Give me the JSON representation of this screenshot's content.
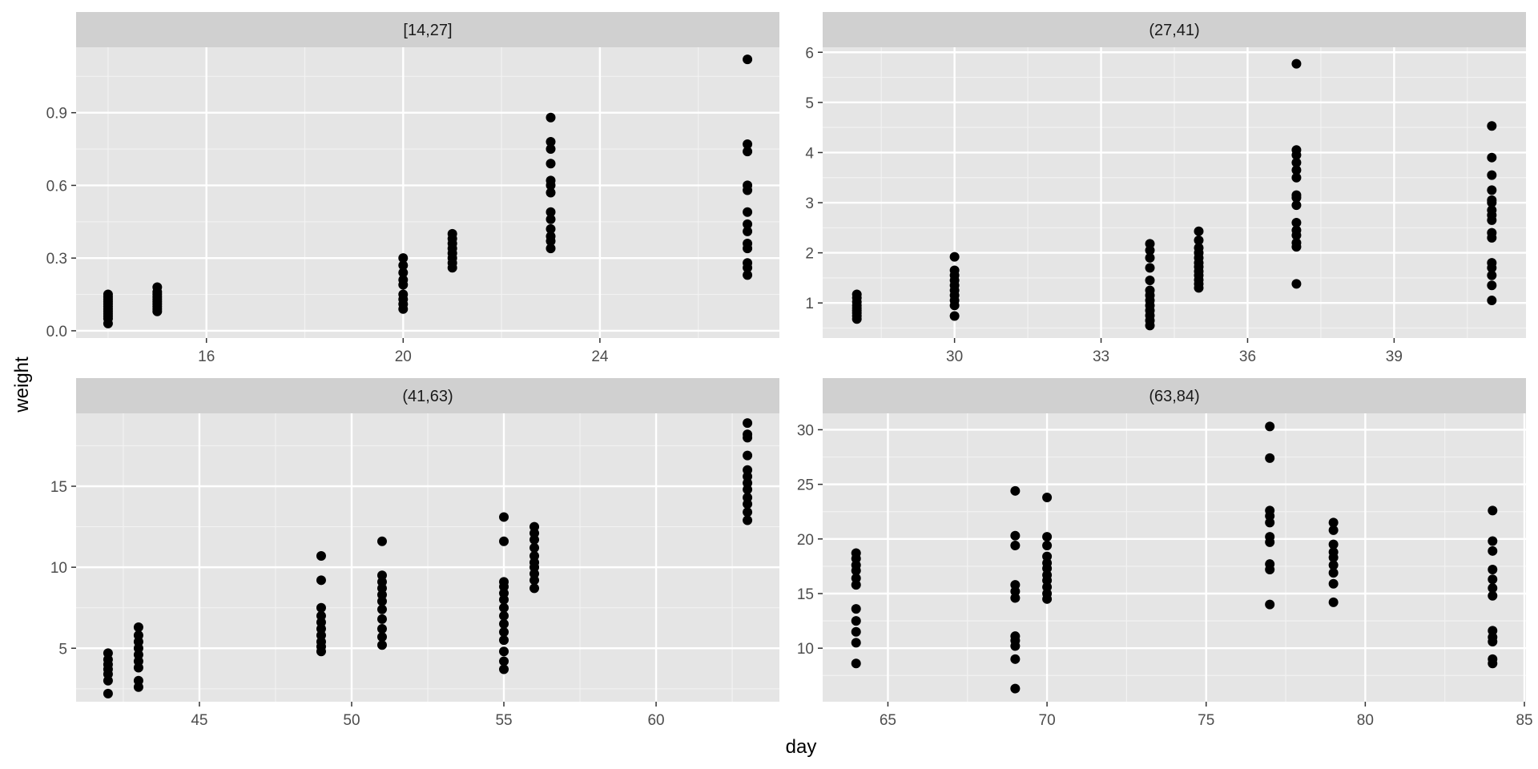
{
  "chart_data": {
    "type": "scatter",
    "xlabel": "day",
    "ylabel": "weight",
    "grid": true,
    "colors": {
      "background": "#ffffff",
      "panel": "#e5e5e5",
      "strip": "#d0d0d0",
      "grid_major": "#ffffff",
      "grid_minor": "#f2f2f2",
      "point": "#000000",
      "tick_text": "#4d4d4d",
      "strip_text": "#1a1a1a",
      "axis_title": "#000000"
    },
    "panels": [
      {
        "label": "[14,27]",
        "xlim": [
          13.35,
          27.65
        ],
        "ylim": [
          -0.03,
          1.17
        ],
        "xticks": [
          16,
          20,
          24
        ],
        "yticks": [
          0.0,
          0.3,
          0.6,
          0.9
        ],
        "ytick_labels": [
          "0.0",
          "0.3",
          "0.6",
          "0.9"
        ],
        "xgrid_minor": [
          14,
          18,
          22,
          26
        ],
        "ygrid_minor": [
          0.15,
          0.45,
          0.75,
          1.05
        ],
        "points": [
          {
            "x": 14,
            "y": [
              0.03,
              0.05,
              0.06,
              0.07,
              0.08,
              0.09,
              0.1,
              0.11,
              0.12,
              0.13,
              0.14,
              0.15
            ]
          },
          {
            "x": 15,
            "y": [
              0.08,
              0.09,
              0.1,
              0.11,
              0.12,
              0.13,
              0.14,
              0.15,
              0.16,
              0.18
            ]
          },
          {
            "x": 20,
            "y": [
              0.09,
              0.11,
              0.13,
              0.15,
              0.19,
              0.21,
              0.24,
              0.27,
              0.3
            ]
          },
          {
            "x": 21,
            "y": [
              0.26,
              0.28,
              0.3,
              0.32,
              0.34,
              0.36,
              0.38,
              0.4
            ]
          },
          {
            "x": 23,
            "y": [
              0.34,
              0.37,
              0.39,
              0.42,
              0.46,
              0.49,
              0.57,
              0.6,
              0.62,
              0.69,
              0.75,
              0.78,
              0.88
            ]
          },
          {
            "x": 27,
            "y": [
              0.23,
              0.26,
              0.28,
              0.34,
              0.36,
              0.41,
              0.44,
              0.49,
              0.58,
              0.6,
              0.74,
              0.77,
              1.12
            ]
          }
        ]
      },
      {
        "label": "(27,41)",
        "xlim": [
          27.3,
          41.7
        ],
        "ylim": [
          0.3,
          6.1
        ],
        "xticks": [
          30,
          33,
          36,
          39
        ],
        "yticks": [
          1,
          2,
          3,
          4,
          5,
          6
        ],
        "ytick_labels": [
          "1",
          "2",
          "3",
          "4",
          "5",
          "6"
        ],
        "xgrid_minor": [
          28.5,
          31.5,
          34.5,
          37.5,
          40.5
        ],
        "ygrid_minor": [
          0.5,
          1.5,
          2.5,
          3.5,
          4.5,
          5.5
        ],
        "points": [
          {
            "x": 28,
            "y": [
              0.68,
              0.74,
              0.8,
              0.85,
              0.9,
              0.95,
              1.02,
              1.1,
              1.17
            ]
          },
          {
            "x": 30,
            "y": [
              0.74,
              0.95,
              1.05,
              1.15,
              1.25,
              1.35,
              1.45,
              1.55,
              1.65,
              1.92
            ]
          },
          {
            "x": 34,
            "y": [
              0.55,
              0.65,
              0.75,
              0.85,
              0.95,
              1.05,
              1.15,
              1.25,
              1.45,
              1.7,
              1.9,
              2.05,
              2.18
            ]
          },
          {
            "x": 35,
            "y": [
              1.3,
              1.38,
              1.46,
              1.55,
              1.63,
              1.72,
              1.8,
              1.9,
              2.0,
              2.1,
              2.25,
              2.43
            ]
          },
          {
            "x": 37,
            "y": [
              1.38,
              2.12,
              2.2,
              2.35,
              2.45,
              2.6,
              2.95,
              3.1,
              3.15,
              3.5,
              3.65,
              3.8,
              3.95,
              4.05,
              5.77
            ]
          },
          {
            "x": 41,
            "y": [
              1.05,
              1.35,
              1.55,
              1.7,
              1.8,
              2.3,
              2.4,
              2.65,
              2.75,
              2.85,
              3.0,
              3.05,
              3.25,
              3.55,
              3.9,
              4.53
            ]
          }
        ]
      },
      {
        "label": "(41,63)",
        "xlim": [
          40.95,
          64.05
        ],
        "ylim": [
          1.7,
          19.5
        ],
        "xticks": [
          45,
          50,
          55,
          60
        ],
        "yticks": [
          5,
          10,
          15
        ],
        "ytick_labels": [
          "5",
          "10",
          "15"
        ],
        "xgrid_minor": [
          42.5,
          47.5,
          52.5,
          57.5,
          62.5
        ],
        "ygrid_minor": [
          2.5,
          7.5,
          12.5,
          17.5
        ],
        "points": [
          {
            "x": 42,
            "y": [
              2.2,
              3.0,
              3.4,
              3.7,
              4.0,
              4.3,
              4.7
            ]
          },
          {
            "x": 43,
            "y": [
              2.6,
              3.0,
              3.8,
              4.2,
              4.6,
              5.0,
              5.4,
              5.8,
              6.3
            ]
          },
          {
            "x": 49,
            "y": [
              4.8,
              5.1,
              5.4,
              5.8,
              6.2,
              6.6,
              7.0,
              7.5,
              9.2,
              10.7
            ]
          },
          {
            "x": 51,
            "y": [
              5.2,
              5.7,
              6.2,
              6.8,
              7.4,
              7.9,
              8.3,
              8.7,
              9.1,
              9.5,
              11.6
            ]
          },
          {
            "x": 55,
            "y": [
              3.7,
              4.2,
              4.8,
              5.5,
              6.0,
              6.5,
              7.0,
              7.5,
              8.0,
              8.4,
              8.8,
              9.1,
              11.6,
              13.1
            ]
          },
          {
            "x": 56,
            "y": [
              8.7,
              9.2,
              9.6,
              10.0,
              10.3,
              10.7,
              11.2,
              11.7,
              12.1,
              12.5
            ]
          },
          {
            "x": 63,
            "y": [
              12.9,
              13.4,
              13.9,
              14.3,
              14.8,
              15.2,
              15.6,
              16.0,
              16.9,
              18.0,
              18.2,
              18.9
            ]
          }
        ]
      },
      {
        "label": "(63,84)",
        "xlim": [
          62.95,
          85.05
        ],
        "ylim": [
          5.1,
          31.5
        ],
        "xticks": [
          65,
          70,
          75,
          80,
          85
        ],
        "yticks": [
          10,
          15,
          20,
          25,
          30
        ],
        "ytick_labels": [
          "10",
          "15",
          "20",
          "25",
          "30"
        ],
        "xgrid_minor": [
          67.5,
          72.5,
          77.5,
          82.5
        ],
        "ygrid_minor": [
          7.5,
          12.5,
          17.5,
          22.5,
          27.5
        ],
        "points": [
          {
            "x": 64,
            "y": [
              8.6,
              10.5,
              11.5,
              12.5,
              13.6,
              15.8,
              16.4,
              17.1,
              17.6,
              18.2,
              18.7
            ]
          },
          {
            "x": 69,
            "y": [
              6.3,
              9.0,
              10.2,
              10.7,
              11.1,
              14.6,
              15.2,
              15.8,
              19.4,
              20.3,
              24.4
            ]
          },
          {
            "x": 70,
            "y": [
              14.5,
              15.0,
              15.6,
              16.2,
              16.7,
              17.3,
              17.8,
              18.4,
              19.4,
              20.2,
              23.8
            ]
          },
          {
            "x": 77,
            "y": [
              14.0,
              17.2,
              17.7,
              19.7,
              20.2,
              21.5,
              22.1,
              22.6,
              27.4,
              30.3
            ]
          },
          {
            "x": 79,
            "y": [
              14.2,
              15.9,
              16.9,
              17.6,
              18.3,
              18.8,
              19.5,
              20.8,
              21.5
            ]
          },
          {
            "x": 84,
            "y": [
              8.6,
              9.0,
              10.6,
              11.0,
              11.6,
              14.8,
              15.5,
              16.3,
              17.2,
              18.9,
              19.8,
              22.6
            ]
          }
        ]
      }
    ]
  }
}
